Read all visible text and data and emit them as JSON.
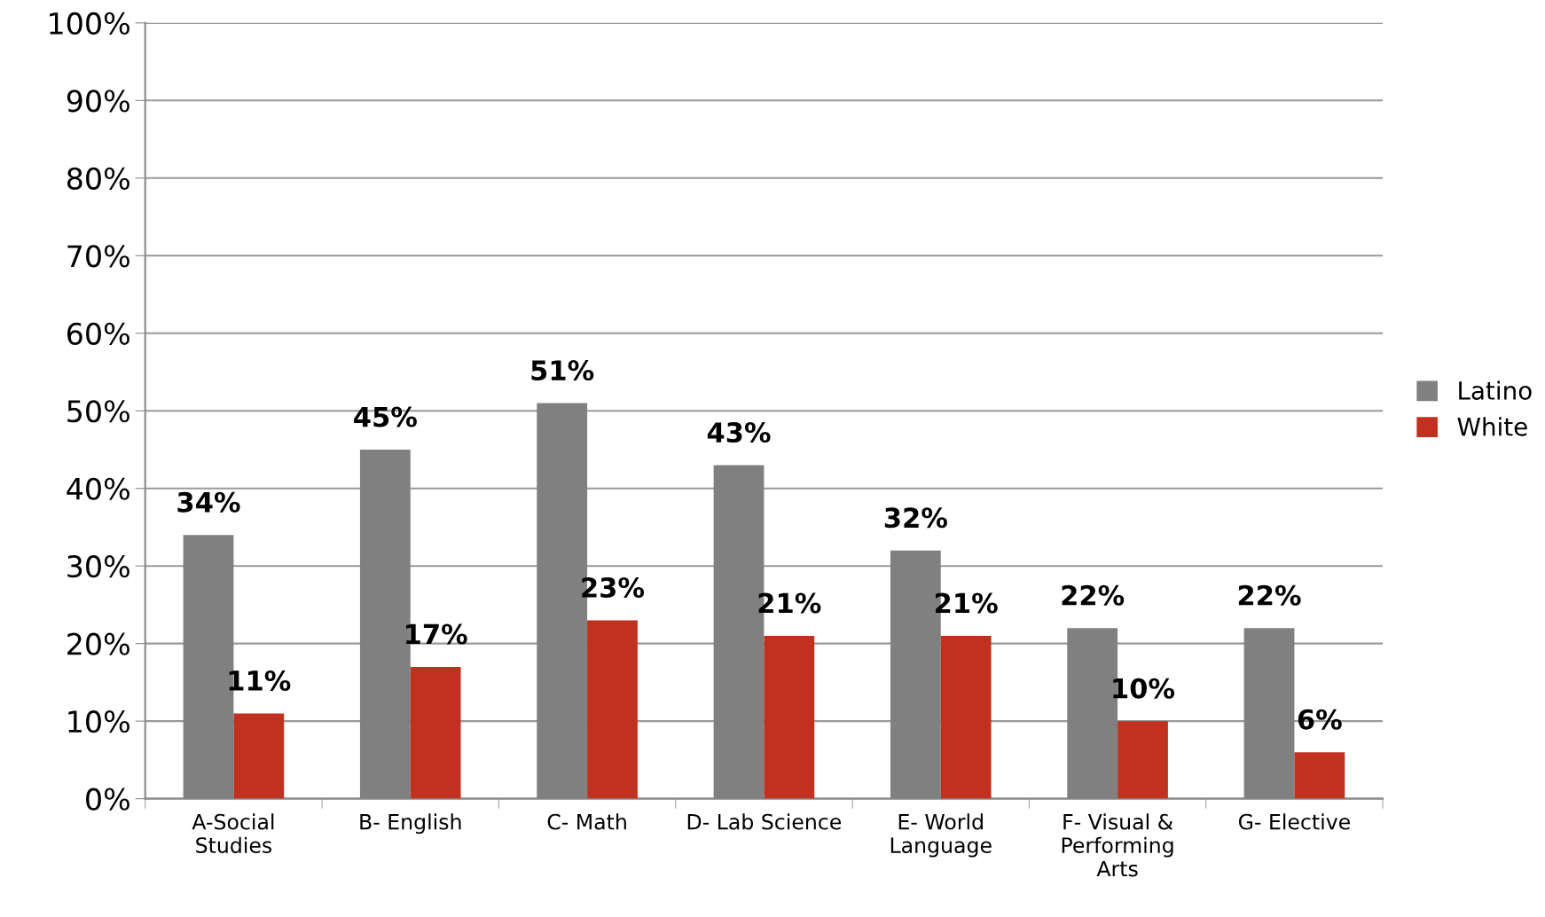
{
  "chart_data": {
    "type": "bar",
    "categories": [
      "A-Social\nStudies",
      "B- English",
      "C- Math",
      "D- Lab Science",
      "E- World\nLanguage",
      "F- Visual &\nPerforming\nArts",
      "G- Elective"
    ],
    "series": [
      {
        "name": "Latino",
        "color": "#808080",
        "values": [
          34,
          45,
          51,
          43,
          32,
          22,
          22
        ],
        "value_labels": [
          "34%",
          "45%",
          "51%",
          "43%",
          "32%",
          "22%",
          "22%"
        ]
      },
      {
        "name": "White",
        "color": "#c0311f",
        "values": [
          11,
          17,
          23,
          21,
          21,
          10,
          6
        ],
        "value_labels": [
          "11%",
          "17%",
          "23%",
          "21%",
          "21%",
          "10%",
          "6%"
        ]
      }
    ],
    "ylim": [
      0,
      100
    ],
    "yticks": [
      {
        "value": 0,
        "label": "0%"
      },
      {
        "value": 10,
        "label": "10%"
      },
      {
        "value": 20,
        "label": "20%"
      },
      {
        "value": 30,
        "label": "30%"
      },
      {
        "value": 40,
        "label": "40%"
      },
      {
        "value": 50,
        "label": "50%"
      },
      {
        "value": 60,
        "label": "60%"
      },
      {
        "value": 70,
        "label": "70%"
      },
      {
        "value": 80,
        "label": "80%"
      },
      {
        "value": 90,
        "label": "90%"
      },
      {
        "value": 100,
        "label": "100%"
      }
    ],
    "grid": "y",
    "legend": "right"
  }
}
